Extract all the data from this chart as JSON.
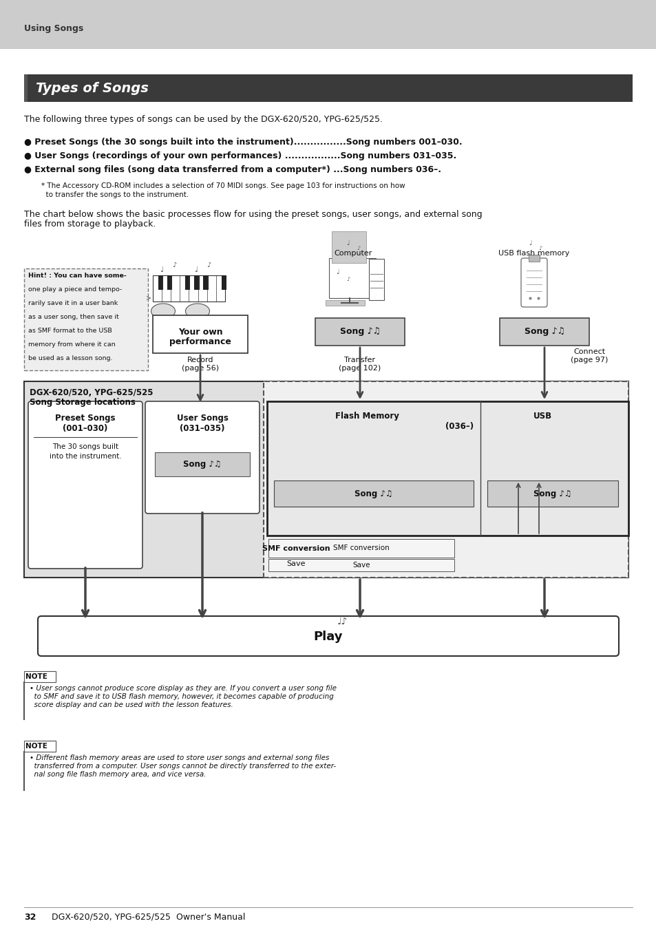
{
  "page_bg": "#ffffff",
  "header_bg": "#cccccc",
  "header_text": "Using Songs",
  "title_bg": "#3a3a3a",
  "title_text": "Types of Songs",
  "body_text_intro": "The following three types of songs can be used by the DGX-620/520, YPG-625/525.",
  "bullet1": "● Preset Songs (the 30 songs built into the instrument)................Song numbers 001–030.",
  "bullet2": "● User Songs (recordings of your own performances) .................Song numbers 031–035.",
  "bullet3": "● External song files (song data transferred from a computer*) ...Song numbers 036–.",
  "footnote_line1": "* The Accessory CD-ROM includes a selection of 70 MIDI songs. See page 103 for instructions on how",
  "footnote_line2": "  to transfer the songs to the instrument.",
  "chart_intro_line1": "The chart below shows the basic processes flow for using the preset songs, user songs, and external song",
  "chart_intro_line2": "files from storage to playback.",
  "hint_text_lines": [
    "Hint! : You can have some-",
    "one play a piece and tempo-",
    "rarily save it in a user bank",
    "as a user song, then save it",
    "as SMF format to the USB",
    "memory from where it can",
    "be used as a lesson song."
  ],
  "dgx_label_line1": "DGX-620/520, YPG-625/525",
  "dgx_label_line2": "Song Storage locations",
  "preset_title": "Preset Songs\n(001–030)",
  "preset_sub_line1": "The 30 songs built",
  "preset_sub_line2": "into the instrument.",
  "user_title": "User Songs\n(031–035)",
  "flash_title": "Flash Memory",
  "usb_title": "USB",
  "range_036": "(036–)",
  "your_own_line1": "Your own",
  "your_own_line2": "performance",
  "computer_label": "Computer",
  "usb_flash_label": "USB flash memory",
  "record_label_line1": "Record",
  "record_label_line2": "(page 56)",
  "transfer_label_line1": "Transfer",
  "transfer_label_line2": "(page 102)",
  "connect_label_line1": "Connect",
  "connect_label_line2": "(page 97)",
  "smf_label": "SMF conversion",
  "save_label": "Save",
  "play_label": "Play",
  "note1_title": "NOTE",
  "note1_line1": "• User songs cannot produce score display as they are. If you convert a user song file",
  "note1_line2": "  to SMF and save it to USB flash memory, however, it becomes capable of producing",
  "note1_line3": "  score display and can be used with the lesson features.",
  "note2_title": "NOTE",
  "note2_line1": "• Different flash memory areas are used to store user songs and external song files",
  "note2_line2": "  transferred from a computer. User songs cannot be directly transferred to the exter-",
  "note2_line3": "  nal song file flash memory area, and vice versa.",
  "footer_num": "32",
  "footer_text": "DGX-620/520, YPG-625/525  Owner's Manual",
  "song_note_sym": " ♪♫"
}
